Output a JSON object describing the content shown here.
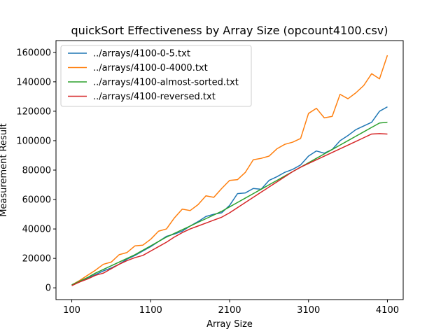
{
  "chart_data": {
    "type": "line",
    "title": "quickSort Effectiveness by Array Size (opcount4100.csv)",
    "xlabel": "Array Size",
    "ylabel": "Measurement Result",
    "xlim": [
      -100,
      4300
    ],
    "ylim": [
      -8000,
      168000
    ],
    "xticks": [
      100,
      1100,
      2100,
      3100,
      4100
    ],
    "yticks": [
      0,
      20000,
      40000,
      60000,
      80000,
      100000,
      120000,
      140000,
      160000
    ],
    "legend_position": "upper-left",
    "grid": false,
    "x": [
      100,
      200,
      300,
      400,
      500,
      600,
      700,
      800,
      900,
      1000,
      1100,
      1200,
      1300,
      1400,
      1500,
      1600,
      1700,
      1800,
      1900,
      2000,
      2100,
      2200,
      2300,
      2400,
      2500,
      2600,
      2700,
      2800,
      2900,
      3000,
      3100,
      3200,
      3300,
      3400,
      3500,
      3600,
      3700,
      3800,
      3900,
      4000,
      4100
    ],
    "series": [
      {
        "name": "../arrays/4100-0-5.txt",
        "color": "#1f77b4",
        "values": [
          2000,
          4000,
          6500,
          9000,
          11500,
          13500,
          16000,
          19500,
          22000,
          25000,
          28000,
          31500,
          35000,
          36500,
          38500,
          42000,
          45000,
          48500,
          50000,
          51000,
          56000,
          64000,
          64500,
          67500,
          67000,
          73000,
          75500,
          78500,
          80500,
          83500,
          89500,
          93000,
          91500,
          94000,
          100000,
          103500,
          107500,
          110000,
          112500,
          120000,
          123000
        ]
      },
      {
        "name": "../arrays/4100-0-4000.txt",
        "color": "#ff7f0e",
        "values": [
          2000,
          5000,
          8500,
          12000,
          16000,
          17500,
          22500,
          24000,
          28500,
          29000,
          33000,
          38500,
          40000,
          47500,
          53500,
          52500,
          56500,
          62500,
          61500,
          67500,
          73000,
          73500,
          78500,
          87000,
          88000,
          89500,
          94500,
          97500,
          99000,
          101500,
          118500,
          122000,
          115500,
          116500,
          131500,
          128500,
          132500,
          137500,
          145500,
          142000,
          158000
        ]
      },
      {
        "name": "../arrays/4100-almost-sorted.txt",
        "color": "#2ca02c",
        "values": [
          2000,
          4500,
          7000,
          10000,
          12500,
          15000,
          17500,
          20000,
          22500,
          25500,
          28500,
          31500,
          34500,
          37000,
          39500,
          42000,
          44500,
          47000,
          49500,
          52000,
          55000,
          58000,
          61000,
          64000,
          67000,
          70000,
          73000,
          76000,
          79000,
          82000,
          85000,
          88000,
          91000,
          94000,
          97000,
          100000,
          103000,
          106000,
          109000,
          112000,
          112500
        ]
      },
      {
        "name": "../arrays/4100-reversed.txt",
        "color": "#d62728",
        "values": [
          1500,
          4000,
          6000,
          8500,
          10000,
          13000,
          16000,
          18500,
          20500,
          22000,
          25000,
          28000,
          31000,
          34500,
          37500,
          40000,
          42000,
          44000,
          46000,
          48000,
          51000,
          54500,
          58000,
          61500,
          65000,
          68500,
          72000,
          75500,
          79000,
          82000,
          84500,
          87000,
          89500,
          92000,
          94500,
          97000,
          99500,
          102000,
          104500,
          104800,
          104500
        ]
      }
    ]
  }
}
